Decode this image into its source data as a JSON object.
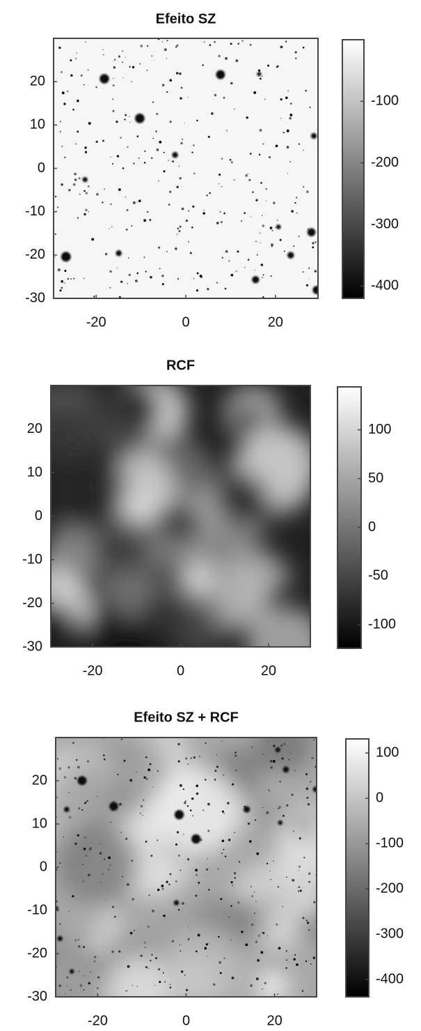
{
  "chart_data": [
    {
      "type": "heatmap",
      "title": "Efeito SZ",
      "xlim": [
        -29.5,
        29.5
      ],
      "ylim": [
        -30,
        30
      ],
      "xticks": [
        -20,
        0,
        20
      ],
      "yticks": [
        -30,
        -20,
        -10,
        0,
        10,
        20
      ],
      "colorbar": {
        "lim": [
          -420,
          0
        ],
        "ticks": [
          -400,
          -300,
          -200,
          -100
        ]
      }
    },
    {
      "type": "heatmap",
      "title": "RCF",
      "xlim": [
        -29.5,
        29.5
      ],
      "ylim": [
        -30,
        30
      ],
      "xticks": [
        -20,
        0,
        20
      ],
      "yticks": [
        -30,
        -20,
        -10,
        0,
        10,
        20
      ],
      "colorbar": {
        "lim": [
          -124,
          144
        ],
        "ticks": [
          -100,
          -50,
          0,
          50,
          100
        ]
      }
    },
    {
      "type": "heatmap",
      "title": "Efeito SZ + RCF",
      "xlim": [
        -29.5,
        29.5
      ],
      "ylim": [
        -30,
        30
      ],
      "xticks": [
        -20,
        0,
        20
      ],
      "yticks": [
        -30,
        -20,
        -10,
        0,
        10,
        20
      ],
      "colorbar": {
        "lim": [
          -438,
          131
        ],
        "ticks": [
          -400,
          -300,
          -200,
          -100,
          0,
          100
        ]
      }
    }
  ]
}
